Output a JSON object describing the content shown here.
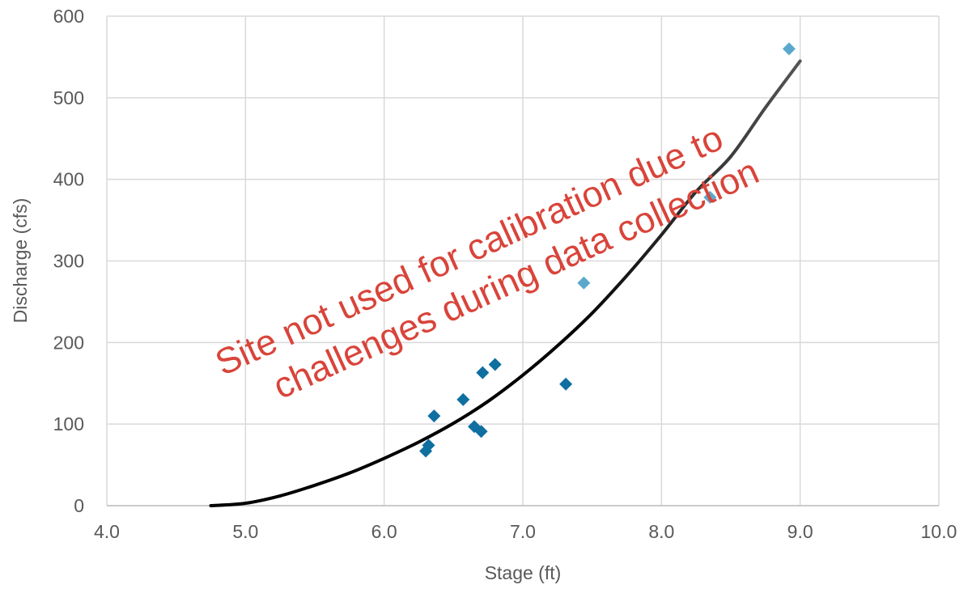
{
  "chart_data": {
    "type": "scatter",
    "title": "",
    "xlabel": "Stage (ft)",
    "ylabel": "Discharge (cfs)",
    "xlim": [
      4.0,
      10.0
    ],
    "ylim": [
      0,
      600
    ],
    "x_ticks": [
      "4.0",
      "5.0",
      "6.0",
      "7.0",
      "8.0",
      "9.0",
      "10.0"
    ],
    "y_ticks": [
      "0",
      "100",
      "200",
      "300",
      "400",
      "500",
      "600"
    ],
    "grid": true,
    "legend": "none",
    "series": [
      {
        "color": "#0e6fa0",
        "marker": "diamond",
        "points": [
          {
            "x": 6.3,
            "y": 67
          },
          {
            "x": 6.32,
            "y": 74
          },
          {
            "x": 6.36,
            "y": 110
          },
          {
            "x": 6.57,
            "y": 130
          },
          {
            "x": 6.65,
            "y": 97
          },
          {
            "x": 6.7,
            "y": 91
          },
          {
            "x": 6.71,
            "y": 163
          },
          {
            "x": 6.8,
            "y": 173
          },
          {
            "x": 7.31,
            "y": 149
          }
        ]
      },
      {
        "color": "#5ba8cc",
        "marker": "diamond",
        "points": [
          {
            "x": 7.44,
            "y": 273
          },
          {
            "x": 8.35,
            "y": 378
          },
          {
            "x": 8.92,
            "y": 560
          }
        ]
      }
    ],
    "curve": {
      "color_start": "#000000",
      "color_end": "#555555",
      "points": [
        {
          "x": 4.75,
          "y": 0
        },
        {
          "x": 5.0,
          "y": 3
        },
        {
          "x": 5.25,
          "y": 12
        },
        {
          "x": 5.5,
          "y": 25
        },
        {
          "x": 5.75,
          "y": 40
        },
        {
          "x": 6.0,
          "y": 58
        },
        {
          "x": 6.25,
          "y": 78
        },
        {
          "x": 6.5,
          "y": 101
        },
        {
          "x": 6.75,
          "y": 128
        },
        {
          "x": 7.0,
          "y": 160
        },
        {
          "x": 7.25,
          "y": 196
        },
        {
          "x": 7.5,
          "y": 236
        },
        {
          "x": 7.75,
          "y": 282
        },
        {
          "x": 8.0,
          "y": 332
        },
        {
          "x": 8.25,
          "y": 385
        },
        {
          "x": 8.5,
          "y": 428
        },
        {
          "x": 8.75,
          "y": 488
        },
        {
          "x": 9.0,
          "y": 545
        }
      ]
    },
    "annotation": {
      "line1": "Site not used for calibration due to",
      "line2": "challenges during data collection",
      "color": "#d9443a"
    }
  }
}
